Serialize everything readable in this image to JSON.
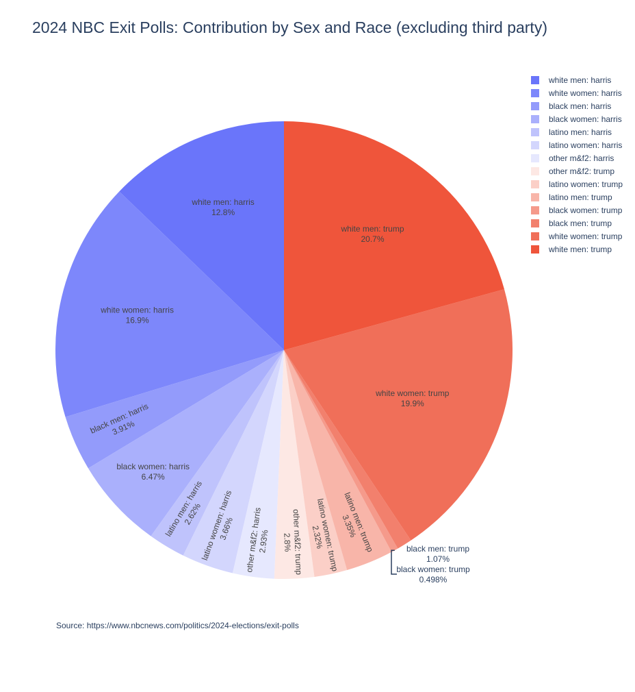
{
  "title": "2024 NBC Exit Polls: Contribution by Sex and Race (excluding third party)",
  "source": "Source: https://www.nbcnews.com/politics/2024-elections/exit-polls",
  "chart_data": {
    "type": "pie",
    "direction": "counterclockwise",
    "start": "top",
    "sort": "none",
    "legend_position": "top-right",
    "slices": [
      {
        "label": "white men: harris",
        "value": 12.8,
        "text": "12.8%",
        "color": "#6a75fa"
      },
      {
        "label": "white women: harris",
        "value": 16.9,
        "text": "16.9%",
        "color": "#7d87fb"
      },
      {
        "label": "black men: harris",
        "value": 3.91,
        "text": "3.91%",
        "color": "#939bfb"
      },
      {
        "label": "black women: harris",
        "value": 6.47,
        "text": "6.47%",
        "color": "#aab0fc"
      },
      {
        "label": "latino men: harris",
        "value": 2.62,
        "text": "2.62%",
        "color": "#bfc3fc"
      },
      {
        "label": "latino women: harris",
        "value": 3.66,
        "text": "3.66%",
        "color": "#d3d6fd"
      },
      {
        "label": "other m&f2: harris",
        "value": 2.93,
        "text": "2.93%",
        "color": "#e6e8fe"
      },
      {
        "label": "other m&f2: trump",
        "value": 2.8,
        "text": "2.8%",
        "color": "#fde8e4"
      },
      {
        "label": "latino women: trump",
        "value": 2.32,
        "text": "2.32%",
        "color": "#fbcfc7"
      },
      {
        "label": "latino men: trump",
        "value": 3.35,
        "text": "3.35%",
        "color": "#f8b5a9"
      },
      {
        "label": "black women: trump",
        "value": 0.498,
        "text": "0.498%",
        "color": "#f59a8b"
      },
      {
        "label": "black men: trump",
        "value": 1.07,
        "text": "1.07%",
        "color": "#f2806d"
      },
      {
        "label": "white women: trump",
        "value": 19.9,
        "text": "19.9%",
        "color": "#f06f59"
      },
      {
        "label": "white men: trump",
        "value": 20.7,
        "text": "20.7%",
        "color": "#ef553b"
      }
    ]
  }
}
